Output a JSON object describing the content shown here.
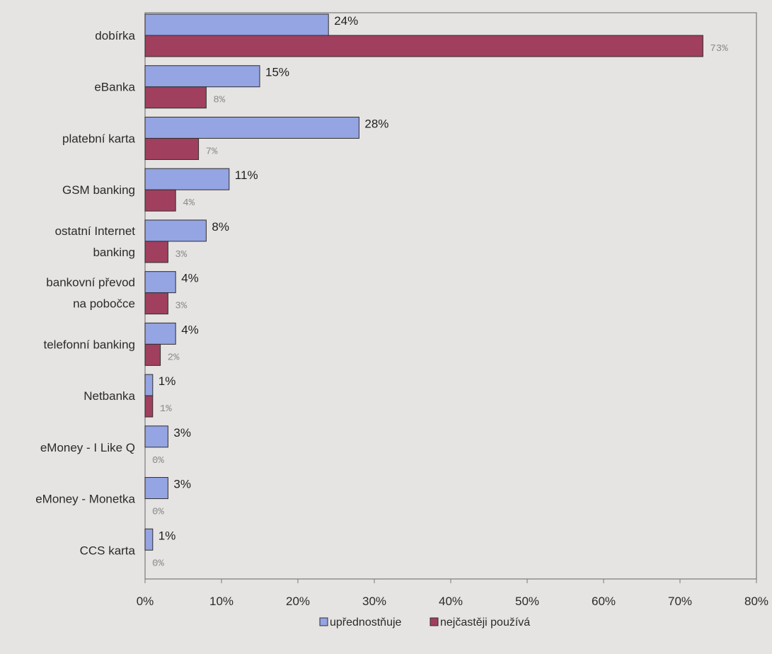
{
  "chart_data": {
    "type": "bar",
    "orientation": "horizontal",
    "categories": [
      [
        "dobírka"
      ],
      [
        "eBanka"
      ],
      [
        "platební karta"
      ],
      [
        "GSM banking"
      ],
      [
        "ostatní Internet",
        "banking"
      ],
      [
        "bankovní převod",
        "na pobočce"
      ],
      [
        "telefonní banking"
      ],
      [
        "Netbanka"
      ],
      [
        "eMoney - I Like Q"
      ],
      [
        "eMoney - Monetka"
      ],
      [
        "CCS karta"
      ]
    ],
    "series": [
      {
        "name": "upřednostňuje",
        "color": "#95a4e2",
        "values": [
          24,
          15,
          28,
          11,
          8,
          4,
          4,
          1,
          3,
          3,
          1
        ],
        "labels": [
          "24%",
          "15%",
          "28%",
          "11%",
          "8%",
          "4%",
          "4%",
          "1%",
          "3%",
          "3%",
          "1%"
        ]
      },
      {
        "name": "nejčastěji používá",
        "color": "#a0405e",
        "values": [
          73,
          8,
          7,
          4,
          3,
          3,
          2,
          1,
          0,
          0,
          0
        ],
        "labels": [
          "73%",
          "8%",
          "7%",
          "4%",
          "3%",
          "3%",
          "2%",
          "1%",
          "0%",
          "0%",
          "0%"
        ]
      }
    ],
    "xlim": [
      0,
      80
    ],
    "xticks": [
      "0%",
      "10%",
      "20%",
      "30%",
      "40%",
      "50%",
      "60%",
      "70%",
      "80%"
    ],
    "xlabel": "",
    "ylabel": "",
    "title": "",
    "grid": false,
    "legend": "bottom"
  }
}
